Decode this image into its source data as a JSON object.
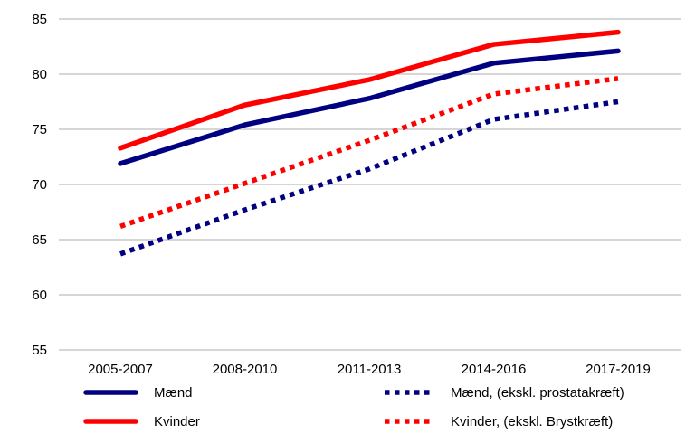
{
  "chart_data": {
    "type": "line",
    "title": "",
    "xlabel": "",
    "ylabel": "",
    "categories": [
      "2005-2007",
      "2008-2010",
      "2011-2013",
      "2014-2016",
      "2017-2019"
    ],
    "ylim": [
      55,
      85
    ],
    "yticks": [
      55,
      60,
      65,
      70,
      75,
      80,
      85
    ],
    "grid": true,
    "legend_position": "bottom",
    "series": [
      {
        "name": "Mænd",
        "color": "#000080",
        "style": "solid",
        "values": [
          71.9,
          75.4,
          77.8,
          81.0,
          82.1
        ]
      },
      {
        "name": "Kvinder",
        "color": "#ff0000",
        "style": "solid",
        "values": [
          73.3,
          77.2,
          79.5,
          82.7,
          83.8
        ]
      },
      {
        "name": "Mænd, (ekskl. prostatakræft)",
        "color": "#000080",
        "style": "dotted",
        "values": [
          63.7,
          67.7,
          71.4,
          75.9,
          77.5
        ]
      },
      {
        "name": "Kvinder, (ekskl. Brystkræft)",
        "color": "#ff0000",
        "style": "dotted",
        "values": [
          66.2,
          70.1,
          74.0,
          78.2,
          79.6
        ]
      }
    ]
  }
}
